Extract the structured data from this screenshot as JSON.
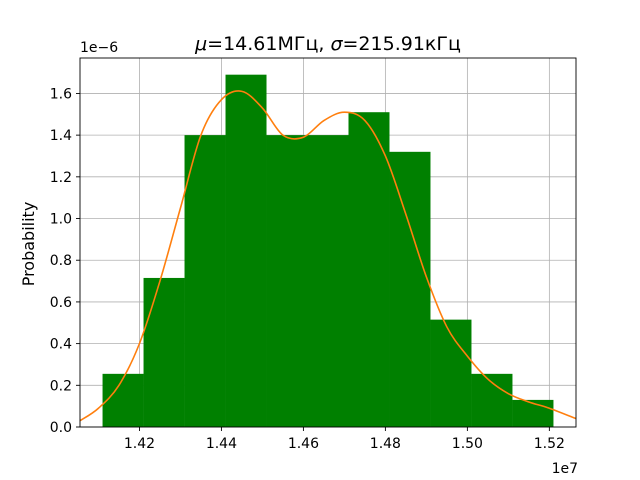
{
  "chart_data": {
    "type": "bar",
    "title_mu_symbol": "μ",
    "title_mu_value": "=14.61МГц, ",
    "title_sigma_symbol": "σ",
    "title_sigma_value": "=215.91кГц",
    "ylabel": "Probability",
    "xlabel": "",
    "x_offset_label": "1e7",
    "y_offset_label": "1e−6",
    "xlim": [
      14.055,
      15.265
    ],
    "ylim": [
      0,
      1.77
    ],
    "xticks": [
      {
        "value": 14.2,
        "label": "1.42"
      },
      {
        "value": 14.4,
        "label": "1.44"
      },
      {
        "value": 14.6,
        "label": "1.46"
      },
      {
        "value": 14.8,
        "label": "1.48"
      },
      {
        "value": 15.0,
        "label": "1.50"
      },
      {
        "value": 15.2,
        "label": "1.52"
      }
    ],
    "yticks": [
      {
        "value": 0.0,
        "label": "0.0"
      },
      {
        "value": 0.2,
        "label": "0.2"
      },
      {
        "value": 0.4,
        "label": "0.4"
      },
      {
        "value": 0.6,
        "label": "0.6"
      },
      {
        "value": 0.8,
        "label": "0.8"
      },
      {
        "value": 1.0,
        "label": "1.0"
      },
      {
        "value": 1.2,
        "label": "1.2"
      },
      {
        "value": 1.4,
        "label": "1.4"
      },
      {
        "value": 1.6,
        "label": "1.6"
      }
    ],
    "grid": true,
    "series": [
      {
        "name": "histogram",
        "type": "bar",
        "color": "#008000",
        "bins": [
          {
            "x0": 14.11,
            "x1": 14.21,
            "value": 0.255
          },
          {
            "x0": 14.21,
            "x1": 14.31,
            "value": 0.715
          },
          {
            "x0": 14.31,
            "x1": 14.41,
            "value": 1.4
          },
          {
            "x0": 14.41,
            "x1": 14.51,
            "value": 1.69
          },
          {
            "x0": 14.51,
            "x1": 14.61,
            "value": 1.4
          },
          {
            "x0": 14.61,
            "x1": 14.71,
            "value": 1.4
          },
          {
            "x0": 14.71,
            "x1": 14.81,
            "value": 1.51
          },
          {
            "x0": 14.81,
            "x1": 14.91,
            "value": 1.32
          },
          {
            "x0": 14.91,
            "x1": 15.01,
            "value": 0.515
          },
          {
            "x0": 15.01,
            "x1": 15.11,
            "value": 0.255
          },
          {
            "x0": 15.11,
            "x1": 15.21,
            "value": 0.13
          }
        ]
      },
      {
        "name": "density",
        "type": "line",
        "color": "#ff7f0e",
        "x": [
          14.055,
          14.1,
          14.15,
          14.2,
          14.25,
          14.3,
          14.35,
          14.4,
          14.45,
          14.5,
          14.55,
          14.6,
          14.65,
          14.7,
          14.75,
          14.8,
          14.85,
          14.9,
          14.95,
          15.0,
          15.05,
          15.1,
          15.15,
          15.2,
          15.265
        ],
        "values": [
          0.03,
          0.09,
          0.2,
          0.4,
          0.7,
          1.05,
          1.4,
          1.57,
          1.61,
          1.53,
          1.4,
          1.39,
          1.47,
          1.51,
          1.47,
          1.3,
          1.02,
          0.72,
          0.48,
          0.34,
          0.23,
          0.16,
          0.12,
          0.09,
          0.04
        ]
      }
    ]
  }
}
